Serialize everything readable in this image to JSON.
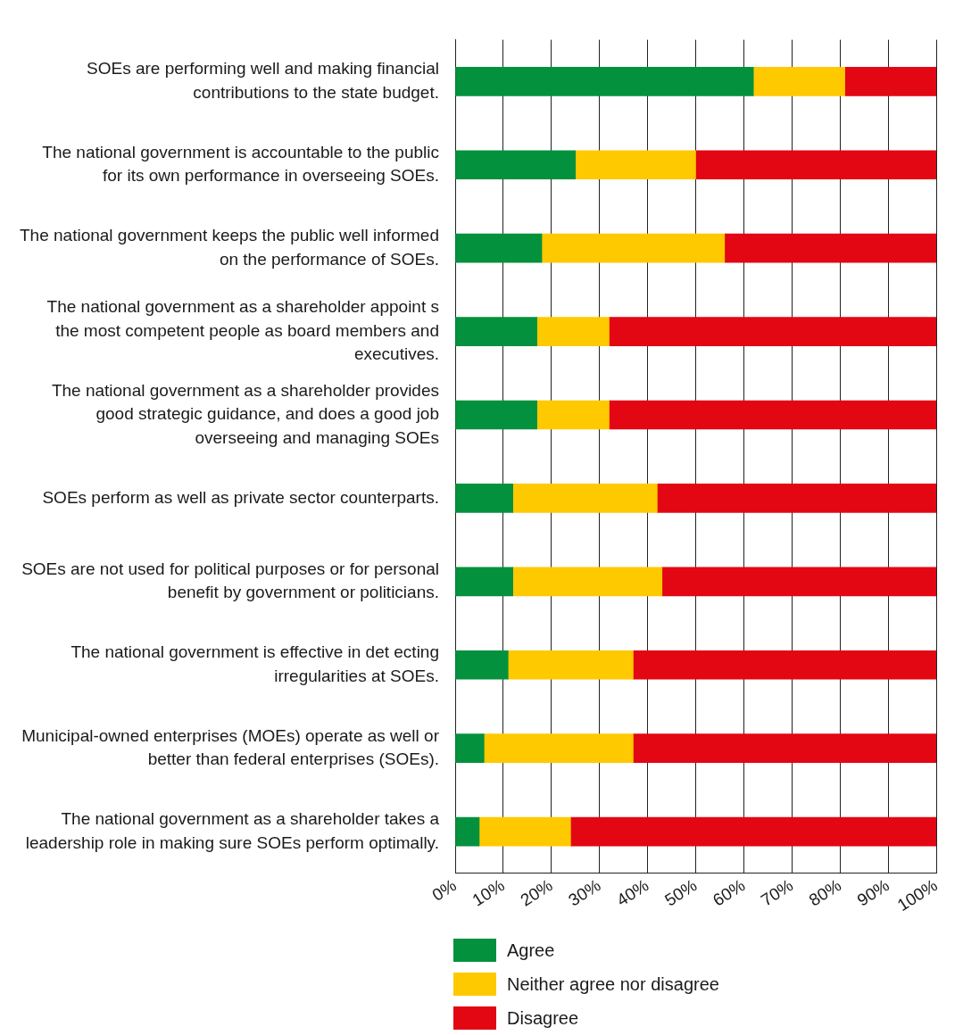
{
  "chart_data": {
    "type": "bar",
    "orientation": "horizontal",
    "stacked": true,
    "categories": [
      "SOEs are performing well and making financial contributions to the state budget.",
      "The national government is accountable to the public for its own performance in overseeing SOEs.",
      "The national government keeps the public well informed on the performance of SOEs.",
      "The national government as a shareholder appoint s the most competent people as board members and executives.",
      "The national government as a shareholder provides good strategic guidance, and does a good job overseeing and managing SOEs",
      "SOEs perform as well as private sector counterparts.",
      "SOEs are not used for political purposes or for personal benefit by government or politicians.",
      "The national government is effective in det ecting irregularities at SOEs.",
      "Municipal-owned enterprises (MOEs) operate as well or better than federal enterprises (SOEs).",
      "The national government as a shareholder takes a leadership role in making sure SOEs perform optimally."
    ],
    "series": [
      {
        "name": "Agree",
        "color": "#03913d",
        "values": [
          62,
          25,
          18,
          17,
          17,
          12,
          12,
          11,
          6,
          5
        ]
      },
      {
        "name": "Neither agree nor disagree",
        "color": "#ffc900",
        "values": [
          19,
          25,
          38,
          15,
          15,
          30,
          31,
          26,
          31,
          19
        ]
      },
      {
        "name": "Disagree",
        "color": "#e30613",
        "values": [
          19,
          50,
          44,
          68,
          68,
          58,
          57,
          63,
          63,
          76
        ]
      }
    ],
    "xlim": [
      0,
      100
    ],
    "xticks": [
      {
        "value": 0,
        "label": "0%"
      },
      {
        "value": 10,
        "label": "10%"
      },
      {
        "value": 20,
        "label": "20%"
      },
      {
        "value": 30,
        "label": "30%"
      },
      {
        "value": 40,
        "label": "40%"
      },
      {
        "value": 50,
        "label": "50%"
      },
      {
        "value": 60,
        "label": "60%"
      },
      {
        "value": 70,
        "label": "70%"
      },
      {
        "value": 80,
        "label": "80%"
      },
      {
        "value": 90,
        "label": "90%"
      },
      {
        "value": 100,
        "label": "100%"
      }
    ],
    "grid": "x",
    "legend": "bottom"
  }
}
